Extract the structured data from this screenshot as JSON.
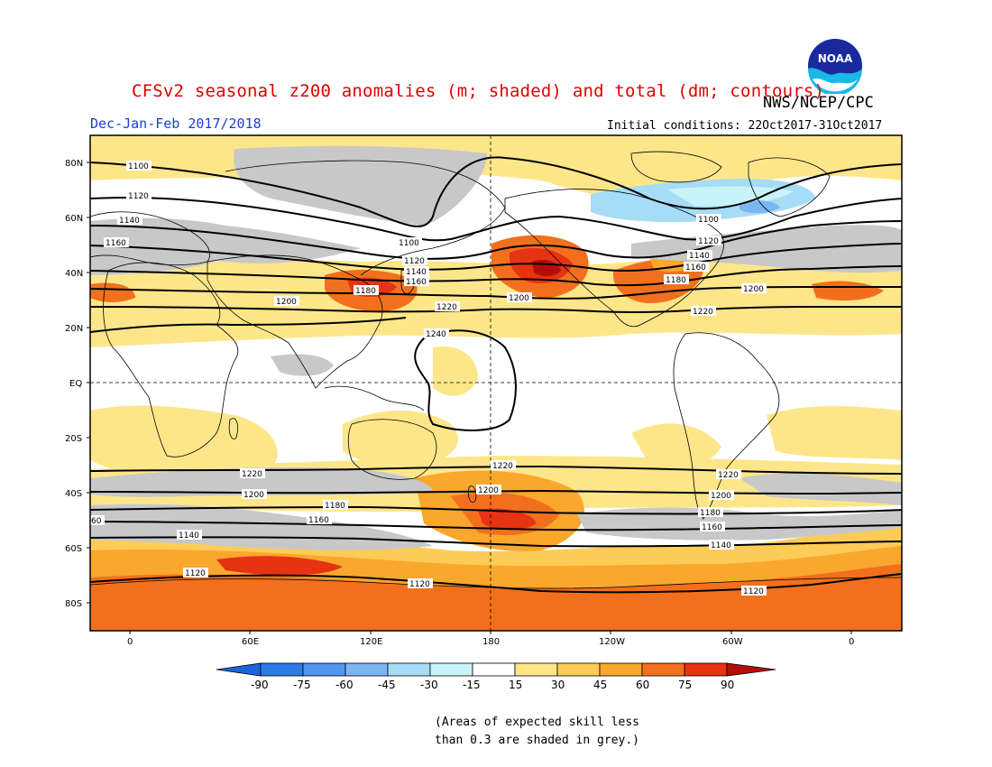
{
  "header": {
    "title": "CFSv2 seasonal z200 anomalies (m; shaded) and total (dm; contours)",
    "agency": "NWS/NCEP/CPC",
    "season": "Dec-Jan-Feb 2017/2018",
    "initial_conditions": "Initial conditions: 22Oct2017-31Oct2017",
    "logo_text": "NOAA"
  },
  "map": {
    "lat_labels": [
      "80N",
      "60N",
      "40N",
      "20N",
      "EQ",
      "20S",
      "40S",
      "60S",
      "80S"
    ],
    "lon_labels": [
      "0",
      "60E",
      "120E",
      "180",
      "120W",
      "60W",
      "0"
    ],
    "contour_labels": [
      "1100",
      "1120",
      "1140",
      "1160",
      "1180",
      "1200",
      "1220",
      "1240",
      "60"
    ]
  },
  "colorbar": {
    "ticks": [
      "-90",
      "-75",
      "-60",
      "-45",
      "-30",
      "-15",
      "15",
      "30",
      "45",
      "60",
      "75",
      "90"
    ],
    "colors": [
      "#1b63d9",
      "#2c7be4",
      "#4f96ee",
      "#7bb6f3",
      "#a6dcf5",
      "#c8f3f8",
      "#ffffff",
      "#fde68a",
      "#fccc57",
      "#f9a72d",
      "#f2701d",
      "#e63312",
      "#b30f0a"
    ],
    "skill_color": "#c8c8c8"
  },
  "footnote": {
    "line1": "(Areas of expected skill less",
    "line2": "than 0.3 are shaded in grey.)"
  }
}
